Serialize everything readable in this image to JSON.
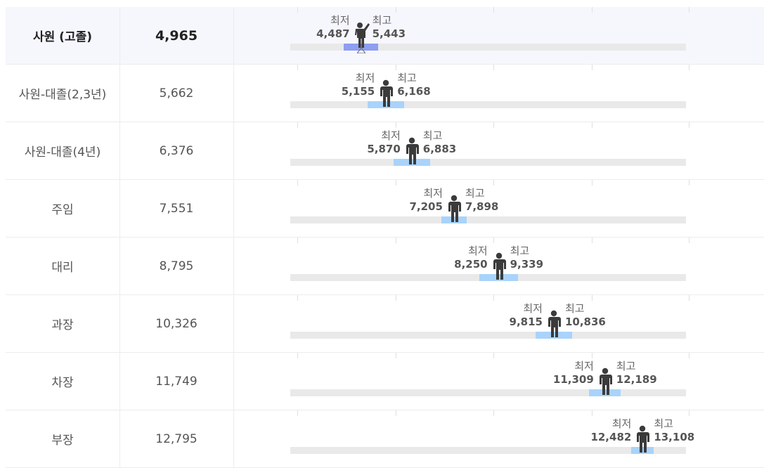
{
  "labels": {
    "min_caption": "최저",
    "max_caption": "최고"
  },
  "scale": {
    "min": 3000,
    "max": 14000
  },
  "colors": {
    "bar_track": "#e9e9e9",
    "bar_range": "#a9d3fb",
    "bar_range_highlight": "#8e9ef0",
    "person": "#3b3b3b"
  },
  "icons": {
    "person": "person-icon",
    "person_waving": "person-waving-icon",
    "position_marker": "triangle-marker-icon"
  },
  "rows": [
    {
      "title": "사원 (고졸)",
      "avg": "4,965",
      "min": "4,487",
      "max": "5,443",
      "avg_value": 4965,
      "min_value": 4487,
      "max_value": 5443,
      "highlight": true
    },
    {
      "title": "사원-대졸(2,3년)",
      "avg": "5,662",
      "min": "5,155",
      "max": "6,168",
      "avg_value": 5662,
      "min_value": 5155,
      "max_value": 6168,
      "highlight": false
    },
    {
      "title": "사원-대졸(4년)",
      "avg": "6,376",
      "min": "5,870",
      "max": "6,883",
      "avg_value": 6376,
      "min_value": 5870,
      "max_value": 6883,
      "highlight": false
    },
    {
      "title": "주임",
      "avg": "7,551",
      "min": "7,205",
      "max": "7,898",
      "avg_value": 7551,
      "min_value": 7205,
      "max_value": 7898,
      "highlight": false
    },
    {
      "title": "대리",
      "avg": "8,795",
      "min": "8,250",
      "max": "9,339",
      "avg_value": 8795,
      "min_value": 8250,
      "max_value": 9339,
      "highlight": false
    },
    {
      "title": "과장",
      "avg": "10,326",
      "min": "9,815",
      "max": "10,836",
      "avg_value": 10326,
      "min_value": 9815,
      "max_value": 10836,
      "highlight": false
    },
    {
      "title": "차장",
      "avg": "11,749",
      "min": "11,309",
      "max": "12,189",
      "avg_value": 11749,
      "min_value": 11309,
      "max_value": 12189,
      "highlight": false
    },
    {
      "title": "부장",
      "avg": "12,795",
      "min": "12,482",
      "max": "13,108",
      "avg_value": 12795,
      "min_value": 12482,
      "max_value": 13108,
      "highlight": false
    }
  ]
}
